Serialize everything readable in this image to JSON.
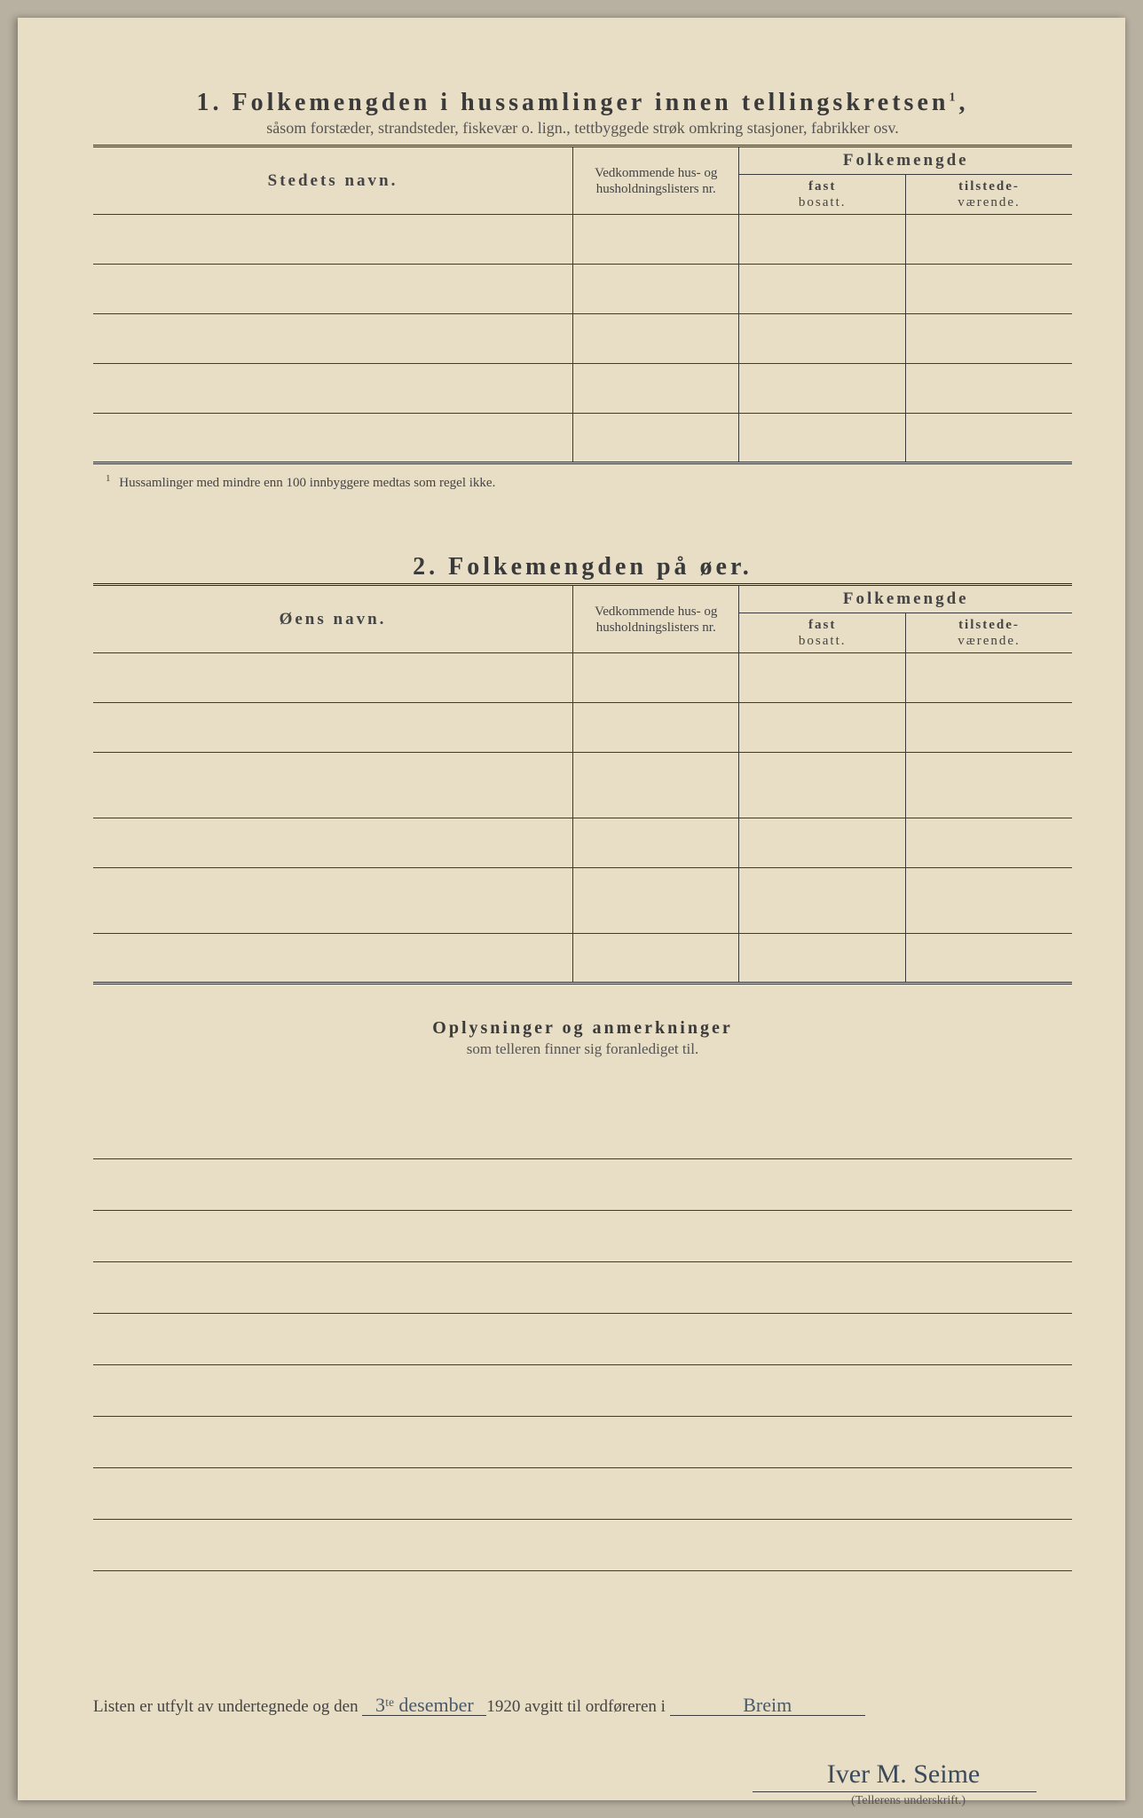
{
  "colors": {
    "paper": "#e8ddc5",
    "ink": "#3a3a3a",
    "faded_ink": "#555",
    "handwriting": "#3a4a5a",
    "rule": "#3a3a3a"
  },
  "typography": {
    "title_fontsize": 28,
    "title_letterspacing": 4,
    "body_fontsize": 18,
    "footnote_fontsize": 15,
    "font_family": "Georgia, Times New Roman, serif",
    "script_family": "Brush Script MT, cursive"
  },
  "section1": {
    "number": "1.",
    "title": "Folkemengden i hussamlinger innen tellingskretsen",
    "title_sup": "1",
    "subtitle": "såsom forstæder, strandsteder, fiskevær o. lign., tettbyggede strøk omkring stasjoner, fabrikker osv.",
    "columns": {
      "name": "Stedets navn.",
      "ref": "Vedkommende hus- og husholdningslisters nr.",
      "group": "Folkemengde",
      "sub_fast_label": "fast",
      "sub_fast_sub": "bosatt.",
      "sub_til_label": "tilstede-",
      "sub_til_sub": "værende."
    },
    "rows": [
      {
        "name": "",
        "ref": "",
        "fast": "",
        "til": ""
      },
      {
        "name": "",
        "ref": "",
        "fast": "",
        "til": ""
      },
      {
        "name": "",
        "ref": "",
        "fast": "",
        "til": ""
      },
      {
        "name": "",
        "ref": "",
        "fast": "",
        "til": ""
      },
      {
        "name": "",
        "ref": "",
        "fast": "",
        "til": ""
      }
    ],
    "footnote_marker": "1",
    "footnote": "Hussamlinger med mindre enn 100 innbyggere medtas som regel ikke."
  },
  "section2": {
    "number": "2.",
    "title": "Folkemengden på øer.",
    "columns": {
      "name": "Øens navn.",
      "ref": "Vedkommende hus- og husholdningslisters nr.",
      "group": "Folkemengde",
      "sub_fast_label": "fast",
      "sub_fast_sub": "bosatt.",
      "sub_til_label": "tilstede-",
      "sub_til_sub": "værende."
    },
    "rows": [
      {
        "name": "",
        "ref": "",
        "fast": "",
        "til": ""
      },
      {
        "name": "",
        "ref": "",
        "fast": "",
        "til": ""
      },
      {
        "name": "",
        "ref": "",
        "fast": "",
        "til": ""
      },
      {
        "name": "",
        "ref": "",
        "fast": "",
        "til": ""
      },
      {
        "name": "",
        "ref": "",
        "fast": "",
        "til": ""
      },
      {
        "name": "",
        "ref": "",
        "fast": "",
        "til": ""
      }
    ]
  },
  "notes": {
    "title": "Oplysninger og anmerkninger",
    "subtitle": "som telleren finner sig foranlediget til.",
    "line_count": 9
  },
  "closing": {
    "prefix": "Listen er utfylt av undertegnede og den",
    "date_handwritten": "3ᵗᵉ desember",
    "year_suffix": "1920 avgitt til ordføreren i",
    "place_handwritten": "Breim"
  },
  "signature": {
    "text": "Iver M. Seime",
    "caption": "(Tellerens underskrift.)"
  }
}
